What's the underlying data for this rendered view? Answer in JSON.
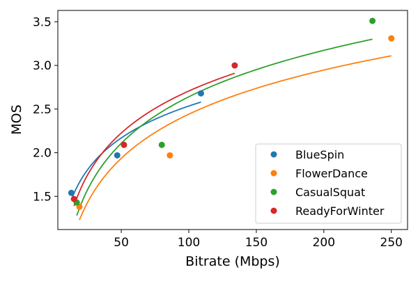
{
  "chart_data": {
    "type": "scatter",
    "title": "",
    "xlabel": "Bitrate (Mbps)",
    "ylabel": "MOS",
    "xlim": [
      3,
      262
    ],
    "ylim": [
      1.12,
      3.63
    ],
    "xticks": [
      50,
      100,
      150,
      200,
      250
    ],
    "yticks": [
      1.5,
      2.0,
      2.5,
      3.0,
      3.5
    ],
    "xtick_labels": [
      "50",
      "100",
      "150",
      "200",
      "250"
    ],
    "ytick_labels": [
      "1.5",
      "2.0",
      "2.5",
      "3.0",
      "3.5"
    ],
    "grid": false,
    "legend_position": "lower-right",
    "series": [
      {
        "name": "BlueSpin",
        "color": "#1f77b4",
        "points": [
          {
            "x": 13,
            "y": 1.54
          },
          {
            "x": 47,
            "y": 1.97
          },
          {
            "x": 109,
            "y": 2.68
          }
        ],
        "fit_curve": {
          "form": "logarithmic",
          "x_range": [
            13,
            109
          ],
          "y_range": [
            1.46,
            2.58
          ]
        }
      },
      {
        "name": "FlowerDance",
        "color": "#ff7f0e",
        "points": [
          {
            "x": 19,
            "y": 1.38
          },
          {
            "x": 86,
            "y": 1.97
          },
          {
            "x": 250,
            "y": 3.31
          }
        ],
        "fit_curve": {
          "form": "logarithmic",
          "x_range": [
            19,
            250
          ],
          "y_range": [
            1.23,
            3.11
          ]
        }
      },
      {
        "name": "CasualSquat",
        "color": "#2ca02c",
        "points": [
          {
            "x": 17,
            "y": 1.43
          },
          {
            "x": 80,
            "y": 2.09
          },
          {
            "x": 236,
            "y": 3.51
          }
        ],
        "fit_curve": {
          "form": "logarithmic",
          "x_range": [
            17,
            236
          ],
          "y_range": [
            1.28,
            3.3
          ]
        }
      },
      {
        "name": "ReadyForWinter",
        "color": "#d62728",
        "points": [
          {
            "x": 15,
            "y": 1.47
          },
          {
            "x": 52,
            "y": 2.09
          },
          {
            "x": 134,
            "y": 3.0
          }
        ],
        "fit_curve": {
          "form": "logarithmic",
          "x_range": [
            15,
            134
          ],
          "y_range": [
            1.39,
            2.91
          ]
        }
      }
    ]
  }
}
